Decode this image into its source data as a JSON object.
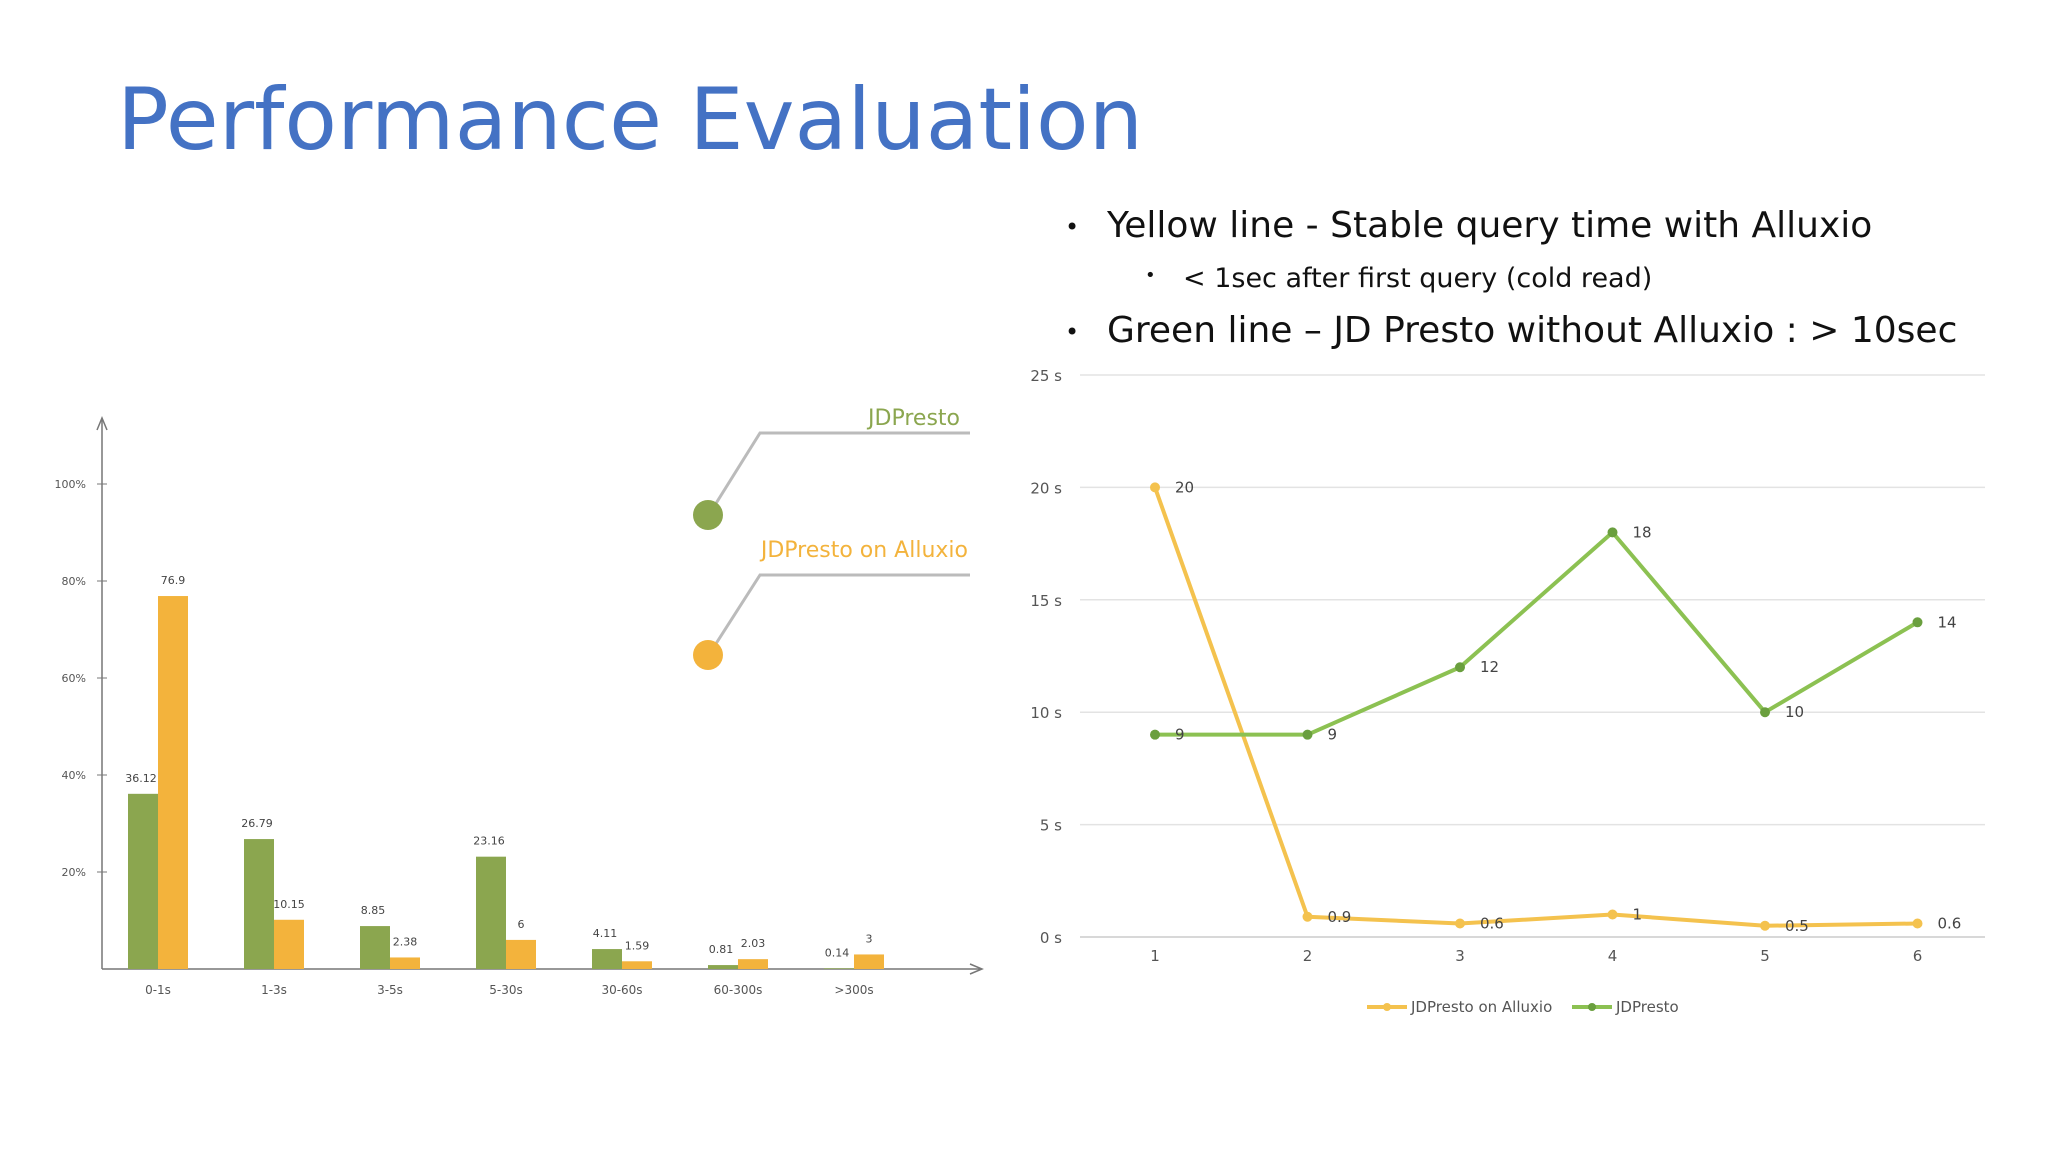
{
  "slide": {
    "title": "Performance Evaluation",
    "bullets": [
      "Yellow line - Stable query time with Alluxio",
      "< 1sec after first query (cold read)",
      "Green line – JD Presto without Alluxio : > 10sec"
    ]
  },
  "colors": {
    "green": "#8ba64f",
    "yellow": "#f3b33c",
    "yellow_line": "#f4c24e",
    "green_line": "#8cc152",
    "title": "#4472c4"
  },
  "chart_data": [
    {
      "type": "bar",
      "categories": [
        "0-1s",
        "1-3s",
        "3-5s",
        "5-30s",
        "30-60s",
        "60-300s",
        ">300s"
      ],
      "series": [
        {
          "name": "JDPresto",
          "values": [
            36.12,
            26.79,
            8.85,
            23.16,
            4.11,
            0.81,
            0.14
          ]
        },
        {
          "name": "JDPresto on Alluxio",
          "values": [
            76.9,
            10.15,
            2.38,
            6,
            1.59,
            2.03,
            3
          ]
        }
      ],
      "yticks": [
        "20%",
        "40%",
        "60%",
        "80%",
        "100%"
      ],
      "ylim": [
        0,
        100
      ],
      "legend": "top-right"
    },
    {
      "type": "line",
      "x": [
        1,
        2,
        3,
        4,
        5,
        6
      ],
      "series": [
        {
          "name": "JDPresto on Alluxio",
          "values": [
            20,
            0.9,
            0.6,
            1,
            0.5,
            0.6
          ]
        },
        {
          "name": "JDPresto",
          "values": [
            9,
            9,
            12,
            18,
            10,
            14
          ]
        }
      ],
      "yticks": [
        "0 s",
        "5 s",
        "10 s",
        "15 s",
        "20 s",
        "25 s"
      ],
      "ylim": [
        0,
        25
      ],
      "grid": true,
      "legend": "bottom"
    }
  ]
}
